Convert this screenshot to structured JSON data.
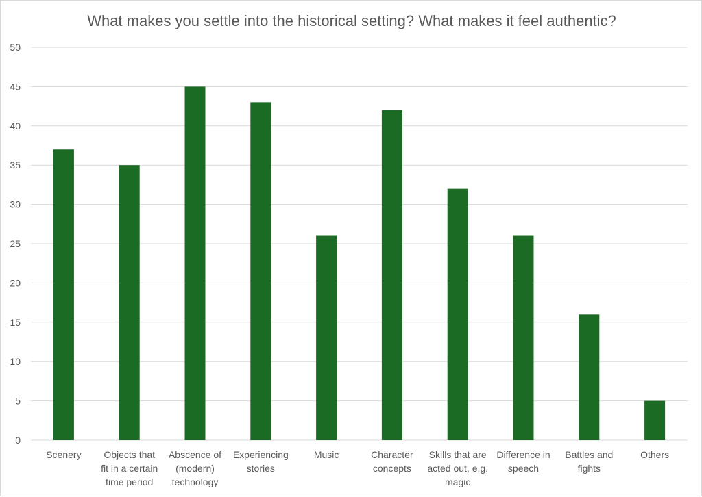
{
  "chart_data": {
    "type": "bar",
    "title": "What makes you settle into the historical setting? What makes it feel authentic?",
    "xlabel": "",
    "ylabel": "",
    "categories": [
      [
        "Scenery"
      ],
      [
        "Objects that",
        "fit in a certain",
        "time period"
      ],
      [
        "Abscence of",
        "(modern)",
        "technology"
      ],
      [
        "Experiencing",
        "stories"
      ],
      [
        "Music"
      ],
      [
        "Character",
        "concepts"
      ],
      [
        "Skills that are",
        "acted out, e.g.",
        "magic"
      ],
      [
        "Difference in",
        "speech"
      ],
      [
        "Battles and",
        "fights"
      ],
      [
        "Others"
      ]
    ],
    "values": [
      37,
      35,
      45,
      43,
      26,
      42,
      32,
      26,
      16,
      5
    ],
    "ylim": [
      0,
      50
    ],
    "yticks": [
      "0",
      "5",
      "10",
      "15",
      "20",
      "25",
      "30",
      "35",
      "40",
      "45",
      "50"
    ],
    "grid": true,
    "legend": "none",
    "bar_color": "#1b6b24"
  }
}
